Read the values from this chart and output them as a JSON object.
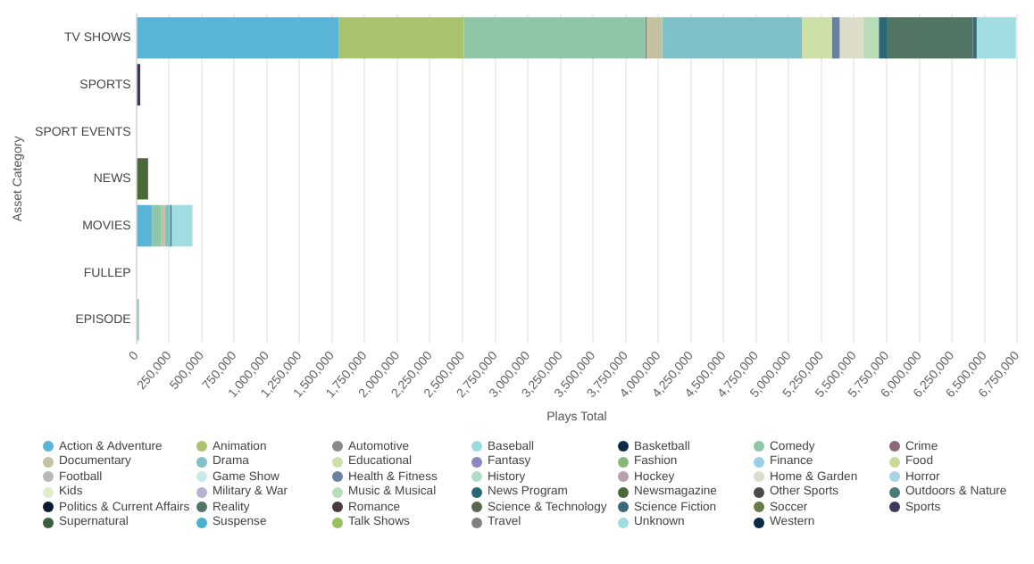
{
  "chart_data": {
    "type": "bar",
    "orientation": "horizontal",
    "stacked": true,
    "xlabel": "Plays Total",
    "ylabel": "Asset Category",
    "categories": [
      "TV SHOWS",
      "SPORTS",
      "SPORT EVENTS",
      "NEWS",
      "MOVIES",
      "FULLEP",
      "EPISODE"
    ],
    "xlim": [
      0,
      6750000
    ],
    "xticks": [
      {
        "value": 0,
        "label": "0"
      },
      {
        "value": 250000,
        "label": "250,000"
      },
      {
        "value": 500000,
        "label": "500,000"
      },
      {
        "value": 750000,
        "label": "750,000"
      },
      {
        "value": 1000000,
        "label": "1,000,000"
      },
      {
        "value": 1250000,
        "label": "1,250,000"
      },
      {
        "value": 1500000,
        "label": "1,500,000"
      },
      {
        "value": 1750000,
        "label": "1,750,000"
      },
      {
        "value": 2000000,
        "label": "2,000,000"
      },
      {
        "value": 2250000,
        "label": "2,250,000"
      },
      {
        "value": 2500000,
        "label": "2,500,000"
      },
      {
        "value": 2750000,
        "label": "2,750,000"
      },
      {
        "value": 3000000,
        "label": "3,000,000"
      },
      {
        "value": 3250000,
        "label": "3,250,000"
      },
      {
        "value": 3500000,
        "label": "3,500,000"
      },
      {
        "value": 3750000,
        "label": "3,750,000"
      },
      {
        "value": 4000000,
        "label": "4,000,000"
      },
      {
        "value": 4250000,
        "label": "4,250,000"
      },
      {
        "value": 4500000,
        "label": "4,500,000"
      },
      {
        "value": 4750000,
        "label": "4,750,000"
      },
      {
        "value": 5000000,
        "label": "5,000,000"
      },
      {
        "value": 5250000,
        "label": "5,250,000"
      },
      {
        "value": 5500000,
        "label": "5,500,000"
      },
      {
        "value": 5750000,
        "label": "5,750,000"
      },
      {
        "value": 6000000,
        "label": "6,000,000"
      },
      {
        "value": 6250000,
        "label": "6,250,000"
      },
      {
        "value": 6500000,
        "label": "6,500,000"
      },
      {
        "value": 6750000,
        "label": "6,750,000"
      }
    ],
    "grid": "x",
    "legend": "bottom",
    "series": [
      {
        "name": "Action & Adventure",
        "color": "#5ab4d6",
        "values": [
          1550000,
          null,
          null,
          null,
          120000,
          null,
          null
        ]
      },
      {
        "name": "Animation",
        "color": "#a8c46e",
        "values": [
          960000,
          null,
          null,
          null,
          null,
          null,
          null
        ]
      },
      {
        "name": "Automotive",
        "color": "#8a8a8a",
        "values": [
          null,
          null,
          null,
          null,
          null,
          null,
          null
        ]
      },
      {
        "name": "Baseball",
        "color": "#98dce0",
        "values": [
          null,
          null,
          null,
          null,
          null,
          null,
          null
        ]
      },
      {
        "name": "Basketball",
        "color": "#0f2a48",
        "values": [
          null,
          null,
          null,
          null,
          null,
          null,
          null
        ]
      },
      {
        "name": "Comedy",
        "color": "#8fc6a8",
        "values": [
          1390000,
          null,
          null,
          null,
          70000,
          null,
          20000
        ]
      },
      {
        "name": "Crime",
        "color": "#8a6a78",
        "values": [
          10000,
          null,
          null,
          null,
          null,
          null,
          null
        ]
      },
      {
        "name": "Documentary",
        "color": "#c2c1a0",
        "values": [
          120000,
          null,
          null,
          null,
          30000,
          null,
          null
        ]
      },
      {
        "name": "Drama",
        "color": "#80c0c8",
        "values": [
          1070000,
          null,
          null,
          null,
          40000,
          null,
          null
        ]
      },
      {
        "name": "Educational",
        "color": "#cde0a8",
        "values": [
          230000,
          null,
          null,
          null,
          null,
          null,
          null
        ]
      },
      {
        "name": "Fantasy",
        "color": "#8a88c0",
        "values": [
          null,
          null,
          null,
          null,
          null,
          null,
          null
        ]
      },
      {
        "name": "Fashion",
        "color": "#88b878",
        "values": [
          null,
          null,
          null,
          null,
          null,
          null,
          null
        ]
      },
      {
        "name": "Finance",
        "color": "#98d0e8",
        "values": [
          null,
          null,
          null,
          null,
          null,
          null,
          null
        ]
      },
      {
        "name": "Food",
        "color": "#c8dc98",
        "values": [
          null,
          null,
          null,
          null,
          null,
          null,
          null
        ]
      },
      {
        "name": "Football",
        "color": "#b8b8b8",
        "values": [
          null,
          null,
          null,
          null,
          null,
          null,
          null
        ]
      },
      {
        "name": "Game Show",
        "color": "#c8e8ec",
        "values": [
          null,
          null,
          null,
          null,
          null,
          null,
          null
        ]
      },
      {
        "name": "Health & Fitness",
        "color": "#6a80a0",
        "values": [
          60000,
          null,
          null,
          null,
          null,
          null,
          null
        ]
      },
      {
        "name": "History",
        "color": "#b0dcc8",
        "values": [
          null,
          null,
          null,
          null,
          null,
          null,
          null
        ]
      },
      {
        "name": "Hockey",
        "color": "#b8a0b0",
        "values": [
          null,
          null,
          null,
          null,
          null,
          null,
          null
        ]
      },
      {
        "name": "Home & Garden",
        "color": "#dcdcc8",
        "values": [
          180000,
          null,
          null,
          null,
          null,
          null,
          null
        ]
      },
      {
        "name": "Horror",
        "color": "#a8d4e0",
        "values": [
          null,
          null,
          null,
          null,
          null,
          null,
          null
        ]
      },
      {
        "name": "Kids",
        "color": "#e0ecc8",
        "values": [
          null,
          null,
          null,
          null,
          null,
          null,
          null
        ]
      },
      {
        "name": "Military & War",
        "color": "#b8b0d0",
        "values": [
          null,
          null,
          null,
          null,
          null,
          null,
          null
        ]
      },
      {
        "name": "Music & Musical",
        "color": "#b8dcb8",
        "values": [
          120000,
          null,
          null,
          null,
          null,
          null,
          null
        ]
      },
      {
        "name": "News Program",
        "color": "#2a6878",
        "values": [
          60000,
          null,
          null,
          null,
          null,
          null,
          null
        ]
      },
      {
        "name": "Newsmagazine",
        "color": "#4a6838",
        "values": [
          null,
          null,
          null,
          90000,
          null,
          null,
          null
        ]
      },
      {
        "name": "Other Sports",
        "color": "#4a4a4a",
        "values": [
          null,
          null,
          null,
          null,
          null,
          null,
          null
        ]
      },
      {
        "name": "Outdoors & Nature",
        "color": "#4a7a78",
        "values": [
          null,
          null,
          null,
          null,
          null,
          null,
          null
        ]
      },
      {
        "name": "Politics & Current Affairs",
        "color": "#0a1a30",
        "values": [
          null,
          null,
          null,
          null,
          null,
          null,
          null
        ]
      },
      {
        "name": "Reality",
        "color": "#527462",
        "values": [
          660000,
          null,
          null,
          null,
          null,
          null,
          null
        ]
      },
      {
        "name": "Romance",
        "color": "#4a3840",
        "values": [
          null,
          null,
          null,
          null,
          null,
          null,
          null
        ]
      },
      {
        "name": "Science & Technology",
        "color": "#5a6850",
        "values": [
          null,
          null,
          null,
          null,
          null,
          null,
          null
        ]
      },
      {
        "name": "Science Fiction",
        "color": "#3a6a78",
        "values": [
          30000,
          null,
          null,
          null,
          10000,
          null,
          null
        ]
      },
      {
        "name": "Soccer",
        "color": "#6a7a48",
        "values": [
          null,
          null,
          null,
          null,
          null,
          null,
          null
        ]
      },
      {
        "name": "Sports",
        "color": "#3a3a58",
        "values": [
          null,
          30000,
          null,
          null,
          null,
          null,
          null
        ]
      },
      {
        "name": "Supernatural",
        "color": "#3a6040",
        "values": [
          null,
          null,
          null,
          null,
          null,
          null,
          null
        ]
      },
      {
        "name": "Suspense",
        "color": "#4ab0d0",
        "values": [
          null,
          null,
          null,
          null,
          null,
          null,
          null
        ]
      },
      {
        "name": "Talk Shows",
        "color": "#98c060",
        "values": [
          null,
          null,
          null,
          null,
          null,
          null,
          null
        ]
      },
      {
        "name": "Travel",
        "color": "#808080",
        "values": [
          null,
          null,
          null,
          null,
          null,
          null,
          null
        ]
      },
      {
        "name": "Unknown",
        "color": "#a0dce0",
        "values": [
          300000,
          null,
          null,
          null,
          160000,
          null,
          null
        ]
      },
      {
        "name": "Western",
        "color": "#0a2848",
        "values": [
          null,
          null,
          null,
          null,
          null,
          null,
          null
        ]
      }
    ]
  }
}
